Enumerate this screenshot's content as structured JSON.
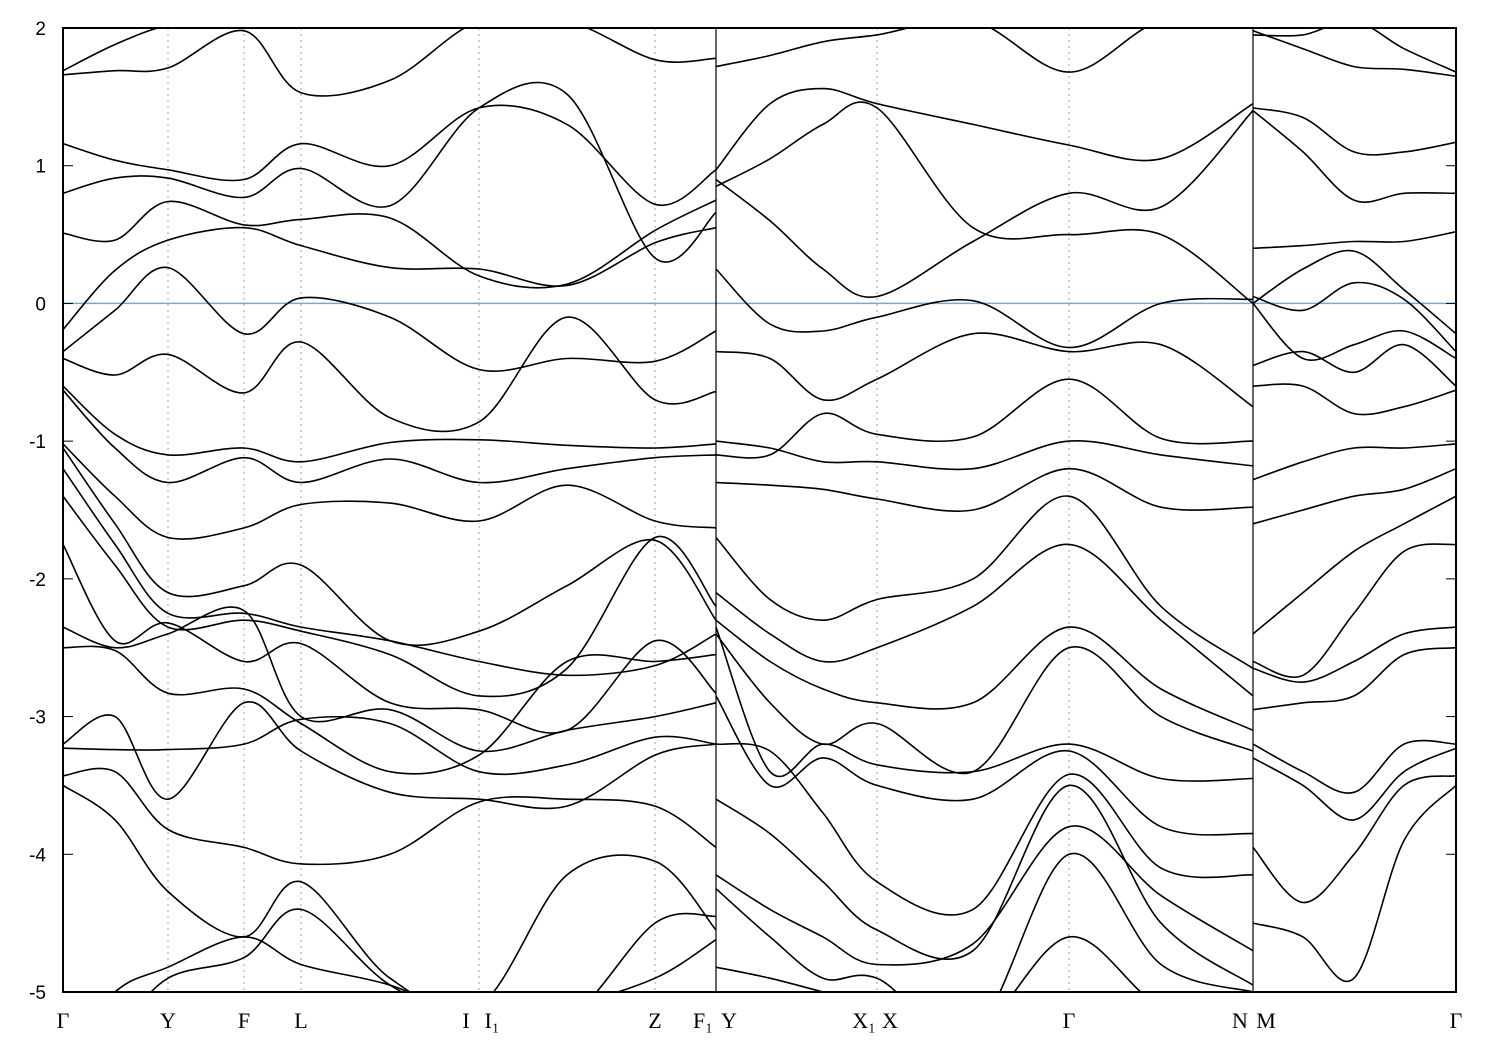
{
  "chart_data": {
    "type": "line",
    "title": "",
    "xlabel": "",
    "ylabel": "",
    "ylim": [
      -5,
      2
    ],
    "xlim": [
      0,
      13.93
    ],
    "yticks": [
      -5,
      -4,
      -3,
      -2,
      -1,
      0,
      1,
      2
    ],
    "ytick_labels": [
      "-5",
      "-4",
      "-3",
      "-2",
      "-1",
      "0",
      "1",
      "2"
    ],
    "grid": "dotted vertical lines at high-symmetry points",
    "fermi_level": 0,
    "colors": {
      "bands": "#000000",
      "fermi": "#56b4e9",
      "grid": "#a0a0a0"
    },
    "xticks": [
      {
        "k": 0,
        "labels": [
          "Γ"
        ]
      },
      {
        "k": 1.05,
        "labels": [
          "Y"
        ]
      },
      {
        "k": 1.81,
        "labels": [
          "F"
        ]
      },
      {
        "k": 2.38,
        "labels": [
          "L"
        ]
      },
      {
        "k": 4.16,
        "labels": [
          "I",
          "I₁"
        ]
      },
      {
        "k": 5.92,
        "labels": [
          "Z"
        ]
      },
      {
        "k": 6.53,
        "labels": [
          "F₁",
          "Y"
        ]
      },
      {
        "k": 8.14,
        "labels": [
          "X₁",
          "X"
        ]
      },
      {
        "k": 10.06,
        "labels": [
          "Γ"
        ]
      },
      {
        "k": 11.9,
        "labels": [
          "N",
          "M"
        ]
      },
      {
        "k": 13.93,
        "labels": [
          "Γ"
        ]
      }
    ],
    "segments": [
      {
        "k": [
          0,
          0.52,
          1.05,
          1.81,
          2.38,
          3.27,
          4.16,
          5.04,
          5.92,
          6.53
        ],
        "bands": [
          [
            1.66,
            1.69,
            1.71,
            1.98,
            1.53,
            1.62,
            2.05,
            2.05,
            1.77,
            1.78
          ],
          [
            1.69,
            1.88,
            2.02,
            2.1,
            2.1,
            2.1,
            2.1,
            2.1,
            2.1,
            2.1
          ],
          [
            1.16,
            1.04,
            0.97,
            0.9,
            1.16,
            1.0,
            1.42,
            1.3,
            0.72,
            0.97
          ],
          [
            0.8,
            0.91,
            0.91,
            0.77,
            0.98,
            0.71,
            1.42,
            1.52,
            0.33,
            0.66
          ],
          [
            0.51,
            0.46,
            0.74,
            0.57,
            0.61,
            0.62,
            0.2,
            0.14,
            0.53,
            0.75
          ],
          [
            -0.19,
            0.24,
            0.46,
            0.55,
            0.42,
            0.26,
            0.25,
            0.13,
            0.44,
            0.55
          ],
          [
            -0.35,
            -0.05,
            0.26,
            -0.22,
            0.04,
            -0.1,
            -0.48,
            -0.4,
            -0.42,
            -0.2
          ],
          [
            -0.4,
            -0.52,
            -0.37,
            -0.65,
            -0.28,
            -0.83,
            -0.86,
            -0.1,
            -0.7,
            -0.64
          ],
          [
            -0.6,
            -0.95,
            -1.1,
            -1.05,
            -1.15,
            -1.01,
            -0.99,
            -1.03,
            -1.05,
            -1.02
          ],
          [
            -0.63,
            -1.05,
            -1.3,
            -1.12,
            -1.3,
            -1.13,
            -1.3,
            -1.2,
            -1.12,
            -1.1
          ],
          [
            -1.02,
            -1.4,
            -1.7,
            -1.63,
            -1.46,
            -1.45,
            -1.58,
            -1.32,
            -1.58,
            -1.63
          ],
          [
            -1.05,
            -1.6,
            -2.1,
            -2.05,
            -1.9,
            -2.45,
            -2.38,
            -2.05,
            -1.72,
            -2.3
          ],
          [
            -1.2,
            -1.75,
            -2.25,
            -2.25,
            -2.35,
            -2.45,
            -2.6,
            -2.7,
            -2.63,
            -2.4
          ],
          [
            -1.4,
            -1.9,
            -2.35,
            -2.3,
            -2.38,
            -2.55,
            -2.85,
            -2.65,
            -1.7,
            -2.2
          ],
          [
            -1.75,
            -2.45,
            -2.32,
            -2.6,
            -2.47,
            -2.9,
            -2.95,
            -3.1,
            -2.45,
            -2.83
          ],
          [
            -2.35,
            -2.5,
            -2.4,
            -2.23,
            -3.0,
            -2.95,
            -3.25,
            -3.1,
            -3.0,
            -2.9
          ],
          [
            -2.5,
            -2.52,
            -2.83,
            -2.8,
            -3.05,
            -3.4,
            -3.28,
            -2.6,
            -2.6,
            -2.55
          ],
          [
            -3.2,
            -3.0,
            -3.6,
            -2.9,
            -3.25,
            -3.55,
            -3.6,
            -3.65,
            -3.28,
            -3.2
          ],
          [
            -3.23,
            -3.24,
            -3.24,
            -3.2,
            -3.02,
            -3.05,
            -3.4,
            -3.35,
            -3.15,
            -3.2
          ],
          [
            -3.43,
            -3.4,
            -3.82,
            -3.95,
            -4.07,
            -4.0,
            -3.62,
            -3.6,
            -3.65,
            -3.95
          ],
          [
            -3.5,
            -3.75,
            -4.27,
            -4.6,
            -4.2,
            -4.9,
            -5.1,
            -4.15,
            -4.05,
            -4.55
          ],
          [
            -5.5,
            -5.0,
            -4.82,
            -4.6,
            -4.8,
            -4.95,
            -5.2,
            -5.2,
            -4.5,
            -4.45
          ],
          [
            -5.6,
            -5.3,
            -4.9,
            -4.75,
            -4.4,
            -4.95,
            -5.2,
            -5.1,
            -4.9,
            -4.62
          ]
        ]
      },
      {
        "k": [
          6.53,
          7.07,
          7.6,
          8.14,
          9.1,
          10.06,
          10.98,
          11.9
        ],
        "bands": [
          [
            1.72,
            1.8,
            1.9,
            1.95,
            2.05,
            1.68,
            2.05,
            2.0
          ],
          [
            0.97,
            1.45,
            1.56,
            1.45,
            1.3,
            1.15,
            1.05,
            1.45
          ],
          [
            0.85,
            1.05,
            1.3,
            1.42,
            0.55,
            0.5,
            0.5,
            0.0
          ],
          [
            0.9,
            0.6,
            0.25,
            0.05,
            0.45,
            0.8,
            0.7,
            1.4
          ],
          [
            0.25,
            -0.15,
            -0.2,
            -0.1,
            0.02,
            -0.32,
            0.0,
            0.03
          ],
          [
            -0.35,
            -0.4,
            -0.7,
            -0.55,
            -0.22,
            -0.35,
            -0.3,
            -0.75
          ],
          [
            -1.1,
            -1.1,
            -0.8,
            -0.95,
            -0.97,
            -0.55,
            -0.98,
            -1.0
          ],
          [
            -1.0,
            -1.05,
            -1.15,
            -1.15,
            -1.2,
            -1.0,
            -1.1,
            -1.18
          ],
          [
            -1.3,
            -1.32,
            -1.35,
            -1.42,
            -1.5,
            -1.2,
            -1.48,
            -1.48
          ],
          [
            -1.7,
            -2.15,
            -2.3,
            -2.15,
            -2.0,
            -1.4,
            -2.2,
            -2.65
          ],
          [
            -2.1,
            -2.4,
            -2.6,
            -2.5,
            -2.2,
            -1.75,
            -2.3,
            -2.85
          ],
          [
            -2.3,
            -2.6,
            -2.8,
            -2.9,
            -2.9,
            -2.35,
            -2.8,
            -3.1
          ],
          [
            -2.4,
            -2.9,
            -3.2,
            -3.05,
            -3.4,
            -2.5,
            -3.0,
            -3.25
          ],
          [
            -2.35,
            -3.4,
            -3.2,
            -3.35,
            -3.4,
            -3.2,
            -3.45,
            -3.45
          ],
          [
            -2.85,
            -3.5,
            -3.3,
            -3.5,
            -3.6,
            -3.25,
            -3.8,
            -3.85
          ],
          [
            -3.2,
            -3.25,
            -3.7,
            -4.2,
            -4.4,
            -3.42,
            -4.1,
            -4.15
          ],
          [
            -3.6,
            -3.85,
            -4.2,
            -4.55,
            -4.7,
            -3.5,
            -4.5,
            -4.95
          ],
          [
            -4.15,
            -4.4,
            -4.6,
            -4.8,
            -4.65,
            -3.8,
            -4.3,
            -4.7
          ],
          [
            -4.25,
            -4.6,
            -4.9,
            -4.9,
            -5.3,
            -4.0,
            -4.8,
            -5.0
          ],
          [
            -4.82,
            -4.9,
            -5.0,
            -5.1,
            -5.3,
            -4.6,
            -5.1,
            -5.1
          ]
        ]
      },
      {
        "k": [
          11.9,
          12.4,
          12.91,
          13.41,
          13.93
        ],
        "bands": [
          [
            1.98,
            1.85,
            1.72,
            1.7,
            1.65
          ],
          [
            1.95,
            1.95,
            2.05,
            1.85,
            1.68
          ],
          [
            1.42,
            1.35,
            1.1,
            1.1,
            1.17
          ],
          [
            1.4,
            1.1,
            0.75,
            0.8,
            0.8
          ],
          [
            0.4,
            0.42,
            0.45,
            0.45,
            0.52
          ],
          [
            0.0,
            0.25,
            0.38,
            0.1,
            -0.22
          ],
          [
            0.05,
            -0.05,
            0.15,
            0.03,
            -0.35
          ],
          [
            0.0,
            -0.4,
            -0.3,
            -0.2,
            -0.4
          ],
          [
            -0.45,
            -0.35,
            -0.5,
            -0.3,
            -0.6
          ],
          [
            -0.6,
            -0.6,
            -0.8,
            -0.75,
            -0.63
          ],
          [
            -1.28,
            -1.15,
            -1.05,
            -1.05,
            -1.02
          ],
          [
            -1.6,
            -1.5,
            -1.4,
            -1.35,
            -1.2
          ],
          [
            -2.4,
            -2.1,
            -1.8,
            -1.6,
            -1.4
          ],
          [
            -2.6,
            -2.7,
            -2.25,
            -1.8,
            -1.75
          ],
          [
            -2.65,
            -2.75,
            -2.6,
            -2.4,
            -2.35
          ],
          [
            -2.95,
            -2.9,
            -2.85,
            -2.55,
            -2.5
          ],
          [
            -3.2,
            -3.4,
            -3.55,
            -3.2,
            -3.2
          ],
          [
            -3.3,
            -3.5,
            -3.75,
            -3.4,
            -3.23
          ],
          [
            -3.95,
            -4.35,
            -4.0,
            -3.5,
            -3.43
          ],
          [
            -4.5,
            -4.6,
            -4.9,
            -3.9,
            -3.5
          ]
        ]
      }
    ]
  }
}
